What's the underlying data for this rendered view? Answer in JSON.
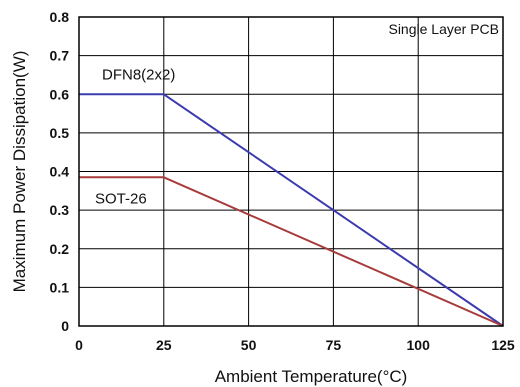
{
  "chart_data": {
    "type": "line",
    "xlabel": "Ambient Temperature(°C)",
    "ylabel": "Maximum Power Dissipation(W)",
    "annotation": "Single Layer PCB",
    "xlim": [
      0,
      125
    ],
    "ylim": [
      0,
      0.8
    ],
    "x_ticks": [
      0,
      25,
      50,
      75,
      100,
      125
    ],
    "y_ticks": [
      0,
      0.1,
      0.2,
      0.3,
      0.4,
      0.5,
      0.6,
      0.7,
      0.8
    ],
    "x_tick_labels": [
      "0",
      "25",
      "50",
      "75",
      "100",
      "125"
    ],
    "y_tick_labels": [
      "0",
      "0.1",
      "0.2",
      "0.3",
      "0.4",
      "0.5",
      "0.6",
      "0.7",
      "0.8"
    ],
    "grid": true,
    "series": [
      {
        "name": "DFN8(2x2)",
        "color": "#3b3bb0",
        "x": [
          0,
          25,
          125
        ],
        "y": [
          0.6,
          0.6,
          0.0
        ]
      },
      {
        "name": "SOT-26",
        "color": "#a83c3c",
        "x": [
          0,
          25,
          125
        ],
        "y": [
          0.385,
          0.385,
          0.0
        ]
      }
    ]
  }
}
